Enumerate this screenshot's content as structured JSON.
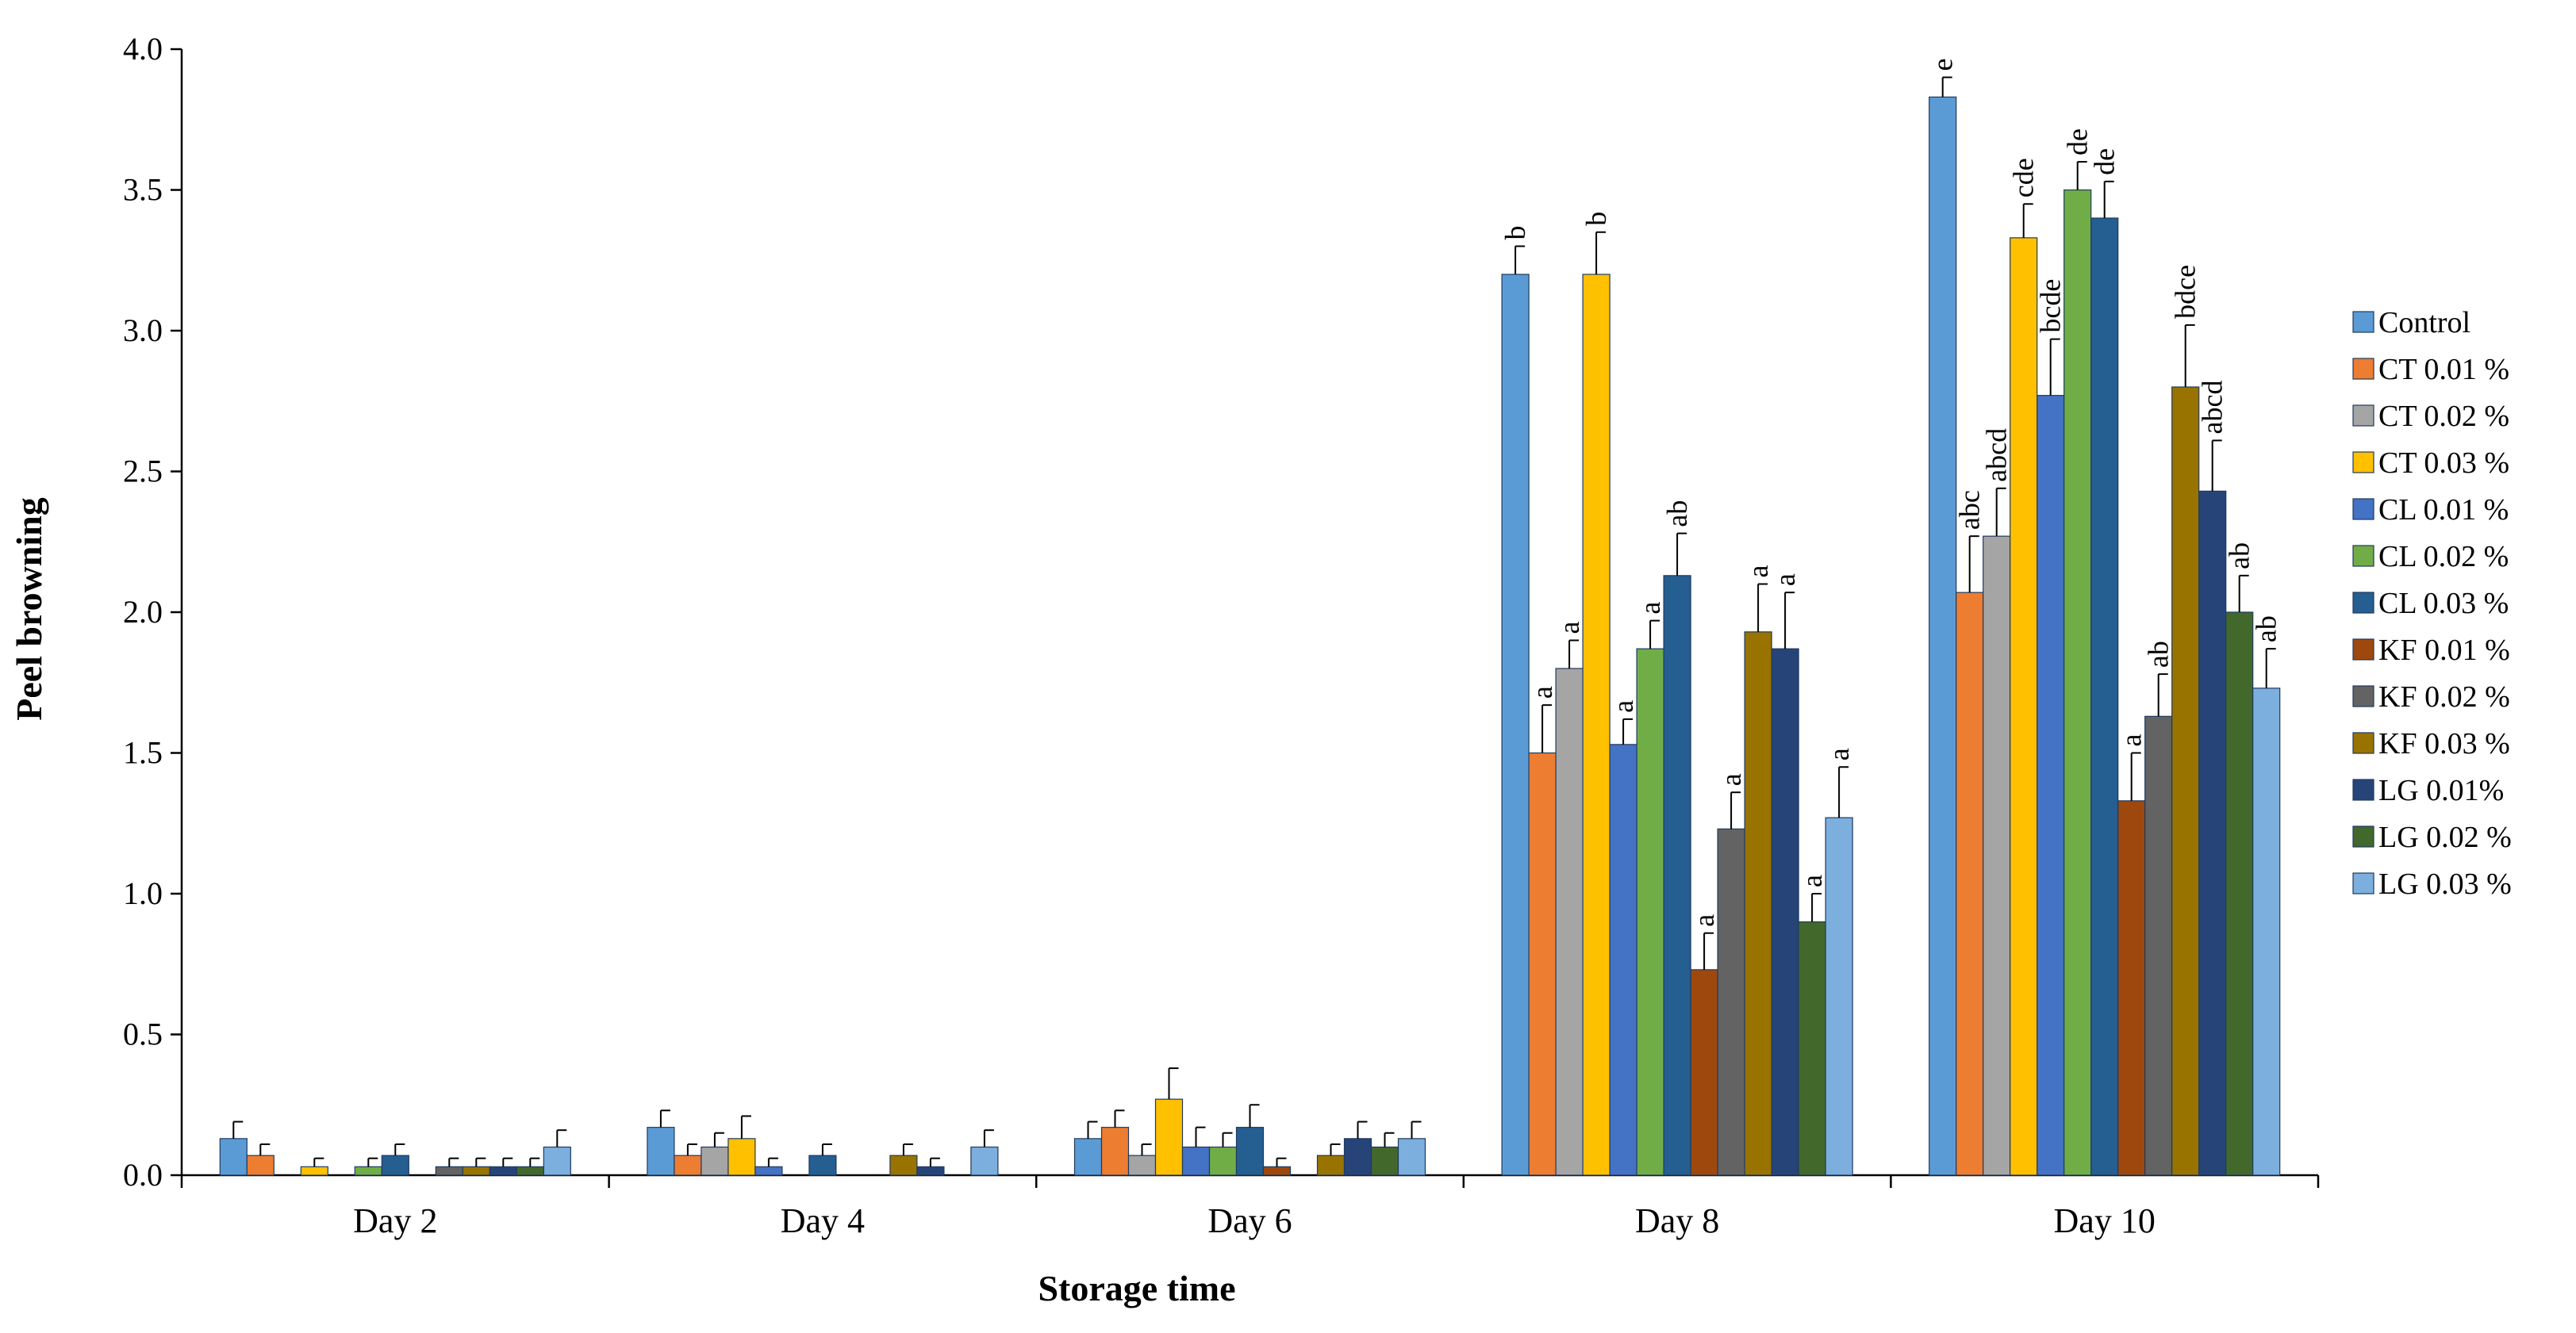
{
  "chart_data": {
    "type": "bar",
    "title": "",
    "xlabel": "Storage time",
    "ylabel": "Peel browning",
    "ylim": [
      0,
      4.0
    ],
    "yticks": [
      "0.0",
      "0.5",
      "1.0",
      "1.5",
      "2.0",
      "2.5",
      "3.0",
      "3.5",
      "4.0"
    ],
    "grid": false,
    "legend_position": "right",
    "categories": [
      "Day 2",
      "Day 4",
      "Day 6",
      "Day 8",
      "Day 10"
    ],
    "series": [
      {
        "name": "Control",
        "color": "#5b9bd5",
        "values": [
          0.13,
          0.17,
          0.13,
          3.2,
          3.83
        ],
        "errors": [
          0.06,
          0.06,
          0.06,
          0.1,
          0.07
        ],
        "sig": [
          "",
          "",
          "",
          "b",
          "e"
        ]
      },
      {
        "name": "CT 0.01 %",
        "color": "#ed7d31",
        "values": [
          0.07,
          0.07,
          0.17,
          1.5,
          2.07
        ],
        "errors": [
          0.04,
          0.04,
          0.06,
          0.17,
          0.2
        ],
        "sig": [
          "",
          "",
          "",
          "a",
          "abc"
        ]
      },
      {
        "name": "CT 0.02 %",
        "color": "#a5a5a5",
        "values": [
          0.0,
          0.1,
          0.07,
          1.8,
          2.27
        ],
        "errors": [
          0.0,
          0.05,
          0.04,
          0.1,
          0.17
        ],
        "sig": [
          "",
          "",
          "",
          "a",
          "abcd"
        ]
      },
      {
        "name": "CT 0.03 %",
        "color": "#ffc000",
        "values": [
          0.03,
          0.13,
          0.27,
          3.2,
          3.33
        ],
        "errors": [
          0.03,
          0.08,
          0.11,
          0.15,
          0.12
        ],
        "sig": [
          "",
          "",
          "",
          "b",
          "cde"
        ]
      },
      {
        "name": "CL 0.01 %",
        "color": "#4472c4",
        "values": [
          0.0,
          0.03,
          0.1,
          1.53,
          2.77
        ],
        "errors": [
          0.0,
          0.03,
          0.07,
          0.09,
          0.2
        ],
        "sig": [
          "",
          "",
          "",
          "a",
          "bcde"
        ]
      },
      {
        "name": "CL 0.02 %",
        "color": "#70ad47",
        "values": [
          0.03,
          0.0,
          0.1,
          1.87,
          3.5
        ],
        "errors": [
          0.03,
          0.0,
          0.05,
          0.1,
          0.1
        ],
        "sig": [
          "",
          "",
          "",
          "a",
          "de"
        ]
      },
      {
        "name": "CL 0.03 %",
        "color": "#255e91",
        "values": [
          0.07,
          0.07,
          0.17,
          2.13,
          3.4
        ],
        "errors": [
          0.04,
          0.04,
          0.08,
          0.15,
          0.13
        ],
        "sig": [
          "",
          "",
          "",
          "ab",
          "de"
        ]
      },
      {
        "name": "KF 0.01 %",
        "color": "#9e480e",
        "values": [
          0.0,
          0.0,
          0.03,
          0.73,
          1.33
        ],
        "errors": [
          0.0,
          0.0,
          0.03,
          0.13,
          0.17
        ],
        "sig": [
          "",
          "",
          "",
          "a",
          "a"
        ]
      },
      {
        "name": "KF 0.02 %",
        "color": "#636363",
        "values": [
          0.03,
          0.0,
          0.0,
          1.23,
          1.63
        ],
        "errors": [
          0.03,
          0.0,
          0.0,
          0.13,
          0.15
        ],
        "sig": [
          "",
          "",
          "",
          "a",
          "ab"
        ]
      },
      {
        "name": "KF 0.03 %",
        "color": "#997300",
        "values": [
          0.03,
          0.07,
          0.07,
          1.93,
          2.8
        ],
        "errors": [
          0.03,
          0.04,
          0.04,
          0.17,
          0.22
        ],
        "sig": [
          "",
          "",
          "",
          "a",
          "bdce"
        ]
      },
      {
        "name": "LG 0.01%",
        "color": "#264478",
        "values": [
          0.03,
          0.03,
          0.13,
          1.87,
          2.43
        ],
        "errors": [
          0.03,
          0.03,
          0.06,
          0.2,
          0.18
        ],
        "sig": [
          "",
          "",
          "",
          "a",
          "abcd"
        ]
      },
      {
        "name": "LG 0.02 %",
        "color": "#43682b",
        "values": [
          0.03,
          0.0,
          0.1,
          0.9,
          2.0
        ],
        "errors": [
          0.03,
          0.0,
          0.05,
          0.1,
          0.13
        ],
        "sig": [
          "",
          "",
          "",
          "a",
          "ab"
        ]
      },
      {
        "name": "LG 0.03 %",
        "color": "#7cafdd",
        "values": [
          0.1,
          0.1,
          0.13,
          1.27,
          1.73
        ],
        "errors": [
          0.06,
          0.06,
          0.06,
          0.18,
          0.14
        ],
        "sig": [
          "",
          "",
          "",
          "a",
          "ab"
        ]
      }
    ]
  }
}
